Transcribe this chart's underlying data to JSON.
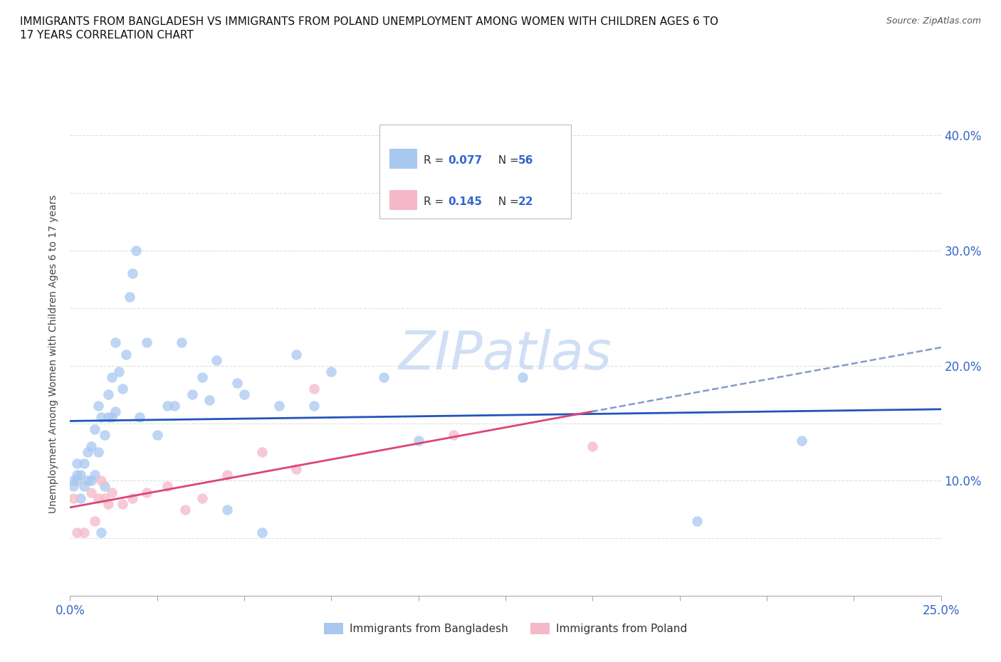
{
  "title_line1": "IMMIGRANTS FROM BANGLADESH VS IMMIGRANTS FROM POLAND UNEMPLOYMENT AMONG WOMEN WITH CHILDREN AGES 6 TO",
  "title_line2": "17 YEARS CORRELATION CHART",
  "source_text": "Source: ZipAtlas.com",
  "ylabel": "Unemployment Among Women with Children Ages 6 to 17 years",
  "xlim": [
    0.0,
    0.25
  ],
  "ylim": [
    0.0,
    0.42
  ],
  "bangladesh_color": "#a8c8f0",
  "poland_color": "#f5b8c8",
  "regression_blue_color": "#2255bb",
  "regression_pink_color": "#dd4477",
  "regression_dashed_color": "#8899cc",
  "watermark_color": "#d0dff5",
  "r_box_blue_fill": "#a8c8f0",
  "r_box_pink_fill": "#f5b8c8",
  "r_text_color": "#3366cc",
  "tick_label_color": "#3366cc",
  "grid_color": "#dddddd",
  "bg_x": [
    0.001,
    0.001,
    0.002,
    0.002,
    0.002,
    0.003,
    0.003,
    0.004,
    0.004,
    0.005,
    0.005,
    0.006,
    0.006,
    0.007,
    0.007,
    0.008,
    0.008,
    0.009,
    0.009,
    0.01,
    0.01,
    0.011,
    0.011,
    0.012,
    0.012,
    0.013,
    0.013,
    0.014,
    0.015,
    0.016,
    0.017,
    0.018,
    0.019,
    0.02,
    0.022,
    0.025,
    0.028,
    0.03,
    0.032,
    0.035,
    0.038,
    0.04,
    0.042,
    0.045,
    0.048,
    0.05,
    0.055,
    0.06,
    0.065,
    0.07,
    0.075,
    0.09,
    0.1,
    0.13,
    0.18,
    0.21
  ],
  "bg_y": [
    0.1,
    0.095,
    0.1,
    0.105,
    0.115,
    0.085,
    0.105,
    0.095,
    0.115,
    0.1,
    0.125,
    0.1,
    0.13,
    0.105,
    0.145,
    0.165,
    0.125,
    0.155,
    0.055,
    0.095,
    0.14,
    0.155,
    0.175,
    0.155,
    0.19,
    0.16,
    0.22,
    0.195,
    0.18,
    0.21,
    0.26,
    0.28,
    0.3,
    0.155,
    0.22,
    0.14,
    0.165,
    0.165,
    0.22,
    0.175,
    0.19,
    0.17,
    0.205,
    0.075,
    0.185,
    0.175,
    0.055,
    0.165,
    0.21,
    0.165,
    0.195,
    0.19,
    0.135,
    0.19,
    0.065,
    0.135
  ],
  "pl_x": [
    0.001,
    0.002,
    0.004,
    0.006,
    0.007,
    0.008,
    0.009,
    0.01,
    0.011,
    0.012,
    0.015,
    0.018,
    0.022,
    0.028,
    0.033,
    0.038,
    0.045,
    0.055,
    0.065,
    0.07,
    0.11,
    0.15
  ],
  "pl_y": [
    0.085,
    0.055,
    0.055,
    0.09,
    0.065,
    0.085,
    0.1,
    0.085,
    0.08,
    0.09,
    0.08,
    0.085,
    0.09,
    0.095,
    0.075,
    0.085,
    0.105,
    0.125,
    0.11,
    0.18,
    0.14,
    0.13
  ]
}
